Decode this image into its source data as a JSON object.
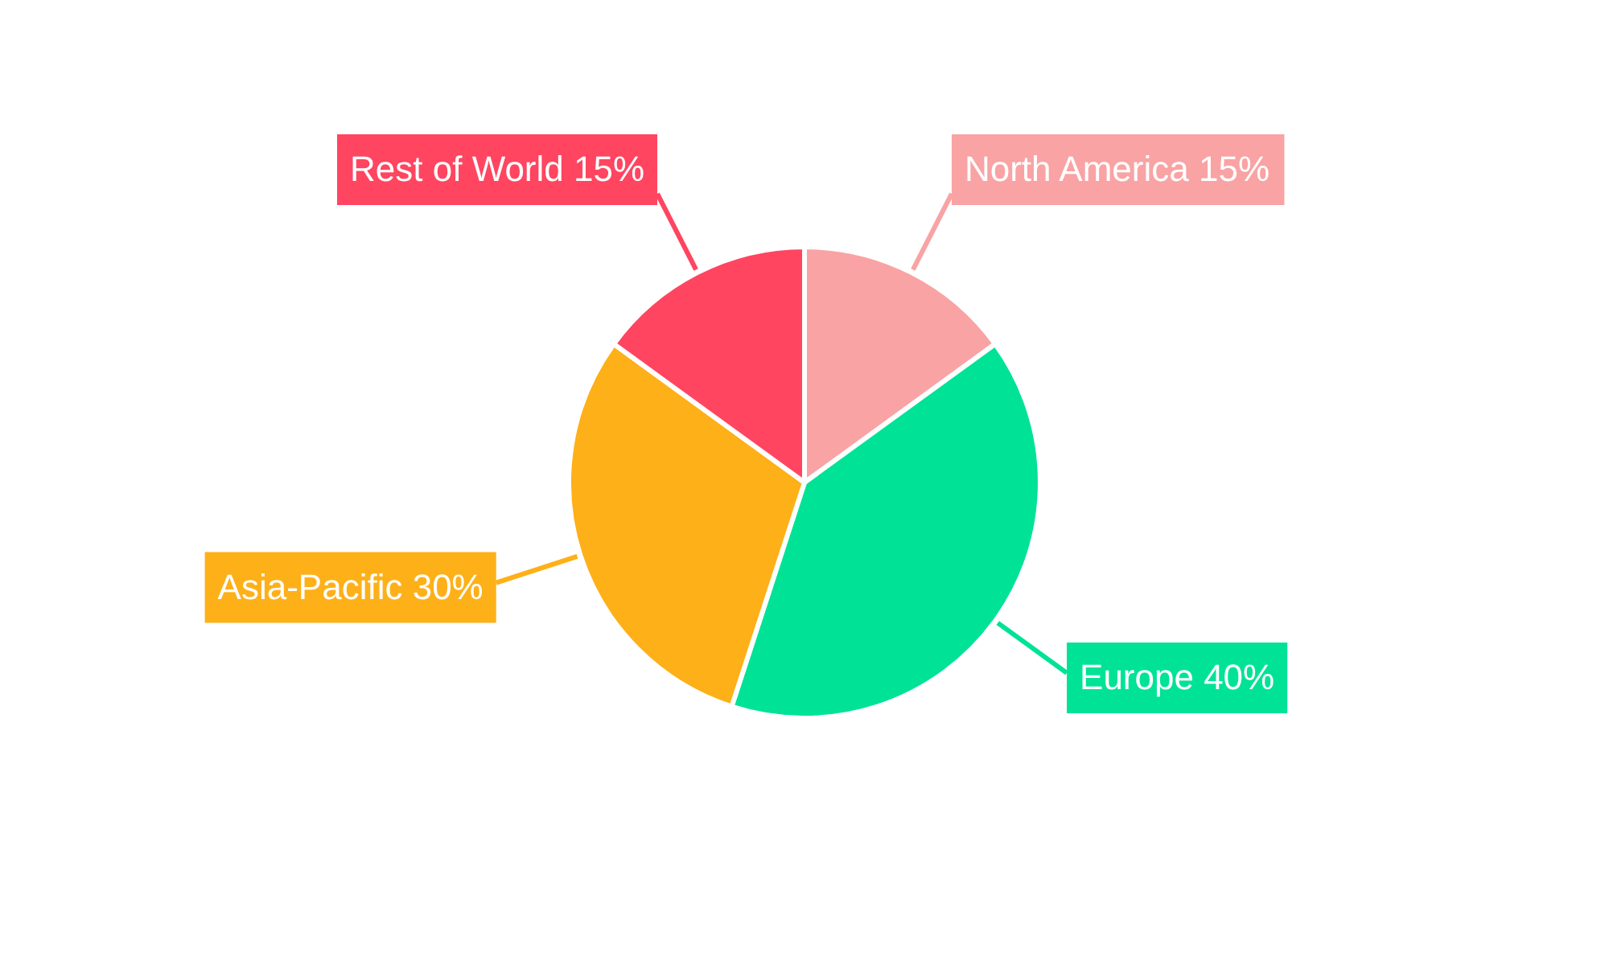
{
  "chart_data": {
    "type": "pie",
    "categories": [
      "North America",
      "Europe",
      "Asia-Pacific",
      "Rest of World"
    ],
    "values": [
      15,
      40,
      30,
      15
    ],
    "value_labels": [
      "15%",
      "40%",
      "30%",
      "15%"
    ],
    "colors": [
      "#f9a3a4",
      "#00e396",
      "#feb019",
      "#ff4560"
    ],
    "legend": false
  }
}
